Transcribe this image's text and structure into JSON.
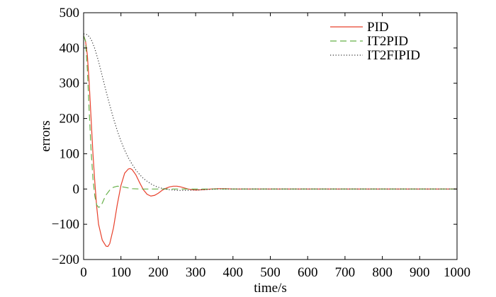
{
  "chart_data": {
    "type": "line",
    "title": "",
    "xlabel": "time/s",
    "ylabel": "errors",
    "xlim": [
      0,
      1000
    ],
    "ylim": [
      -200,
      500
    ],
    "xticks": [
      0,
      100,
      200,
      300,
      400,
      500,
      600,
      700,
      800,
      900,
      1000
    ],
    "yticks": [
      -200,
      -100,
      0,
      100,
      200,
      300,
      400,
      500
    ],
    "xtick_labels": [
      "0",
      "100",
      "200",
      "300",
      "400",
      "500",
      "600",
      "700",
      "800",
      "900",
      "1000"
    ],
    "ytick_labels": [
      "−200",
      "−100",
      "0",
      "100",
      "200",
      "300",
      "400",
      "500"
    ],
    "grid": false,
    "legend_position": "top-right",
    "series": [
      {
        "name": "PID",
        "color": "#e8412c",
        "style": "solid",
        "x": [
          0,
          5,
          10,
          15,
          20,
          25,
          30,
          35,
          40,
          50,
          60,
          65,
          70,
          80,
          90,
          100,
          110,
          120,
          125,
          130,
          140,
          150,
          160,
          170,
          180,
          190,
          200,
          210,
          220,
          230,
          240,
          250,
          260,
          270,
          280,
          290,
          300,
          320,
          340,
          360,
          380,
          400,
          450,
          500,
          600,
          800,
          1000
        ],
        "y": [
          435,
          420,
          380,
          300,
          200,
          100,
          20,
          -50,
          -100,
          -145,
          -162,
          -163,
          -155,
          -110,
          -45,
          10,
          45,
          57,
          58,
          55,
          40,
          18,
          -2,
          -15,
          -20,
          -18,
          -12,
          -4,
          2,
          6,
          8,
          8,
          6,
          3,
          0,
          -2,
          -3,
          -2,
          0,
          1,
          1,
          0,
          0,
          0,
          0,
          0,
          0
        ]
      },
      {
        "name": "IT2PID",
        "color": "#66b048",
        "style": "dashed",
        "x": [
          0,
          5,
          10,
          15,
          20,
          25,
          30,
          35,
          40,
          45,
          50,
          55,
          60,
          70,
          80,
          90,
          100,
          110,
          120,
          130,
          150,
          200,
          250,
          300,
          400,
          600,
          800,
          1000
        ],
        "y": [
          435,
          420,
          340,
          220,
          110,
          30,
          -20,
          -45,
          -52,
          -50,
          -40,
          -28,
          -17,
          -3,
          5,
          8,
          7,
          5,
          3,
          1,
          0,
          0,
          0,
          0,
          0,
          0,
          0,
          0
        ]
      },
      {
        "name": "IT2FIPID",
        "color": "#333333",
        "style": "dotted",
        "x": [
          0,
          10,
          20,
          30,
          40,
          50,
          60,
          70,
          80,
          90,
          100,
          110,
          120,
          130,
          140,
          150,
          160,
          170,
          180,
          190,
          200,
          210,
          220,
          230,
          240,
          250,
          260,
          270,
          280,
          290,
          300,
          320,
          340,
          360,
          380,
          400,
          500,
          600,
          800,
          1000
        ],
        "y": [
          440,
          438,
          425,
          398,
          362,
          320,
          278,
          238,
          200,
          166,
          136,
          110,
          88,
          70,
          54,
          41,
          30,
          22,
          15,
          9,
          5,
          2,
          0,
          -2,
          -3,
          -4,
          -4,
          -4,
          -4,
          -3,
          -3,
          -2,
          -1,
          0,
          0,
          0,
          0,
          0,
          0,
          0
        ]
      }
    ]
  }
}
